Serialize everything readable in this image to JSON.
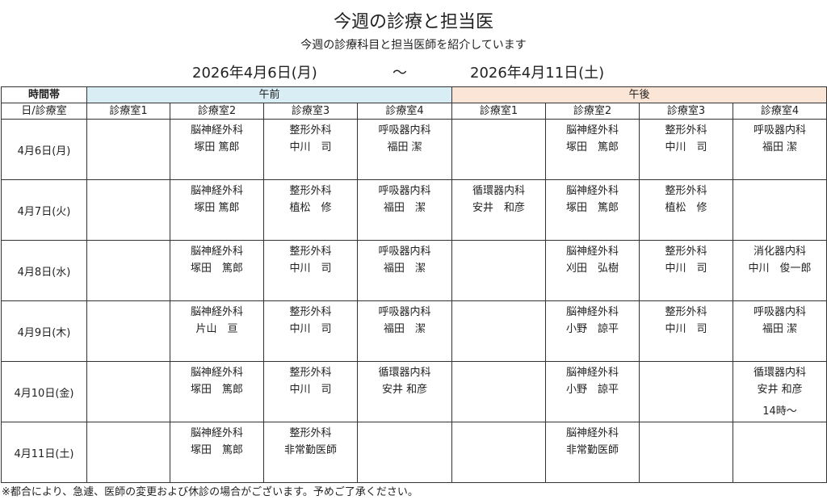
{
  "title": "今週の診療と担当医",
  "subtitle": "今週の診療科目と担当医師を紹介しています",
  "date_range": {
    "start": "2026年4月6日(月)",
    "separator": "〜",
    "end": "2026年4月11日(土)"
  },
  "table": {
    "corner_top": "時間帯",
    "corner_bottom": "日/診療室",
    "am_label": "午前",
    "pm_label": "午後",
    "rooms": [
      "診療室1",
      "診療室2",
      "診療室3",
      "診療室4",
      "診療室1",
      "診療室2",
      "診療室3",
      "診療室4"
    ],
    "days": [
      {
        "date": "4月6日(月)",
        "cells": [
          null,
          {
            "dept": "脳神経外科",
            "doctor": "塚田 篤郎"
          },
          {
            "dept": "整形外科",
            "doctor": "中川　司"
          },
          {
            "dept": "呼吸器内科",
            "doctor": "福田 潔"
          },
          null,
          {
            "dept": "脳神経外科",
            "doctor": "塚田　篤郎"
          },
          {
            "dept": "整形外科",
            "doctor": "中川　司"
          },
          {
            "dept": "呼吸器内科",
            "doctor": "福田 潔"
          }
        ]
      },
      {
        "date": "4月7日(火)",
        "cells": [
          null,
          {
            "dept": "脳神経外科",
            "doctor": "塚田 篤郎"
          },
          {
            "dept": "整形外科",
            "doctor": "植松　修"
          },
          {
            "dept": "呼吸器内科",
            "doctor": "福田　潔"
          },
          {
            "dept": "循環器内科",
            "doctor": "安井　和彦"
          },
          {
            "dept": "脳神経外科",
            "doctor": "塚田　篤郎"
          },
          {
            "dept": "整形外科",
            "doctor": "植松　修"
          },
          null
        ]
      },
      {
        "date": "4月8日(水)",
        "cells": [
          null,
          {
            "dept": "脳神経外科",
            "doctor": "塚田　篤郎"
          },
          {
            "dept": "整形外科",
            "doctor": "中川　司"
          },
          {
            "dept": "呼吸器内科",
            "doctor": "福田　潔"
          },
          null,
          {
            "dept": "脳神経外科",
            "doctor": "刈田　弘樹"
          },
          {
            "dept": "整形外科",
            "doctor": "中川　司"
          },
          {
            "dept": "消化器内科",
            "doctor": "中川　俊一郎"
          }
        ]
      },
      {
        "date": "4月9日(木)",
        "cells": [
          null,
          {
            "dept": "脳神経外科",
            "doctor": "片山　亘"
          },
          {
            "dept": "整形外科",
            "doctor": "中川　司"
          },
          {
            "dept": "呼吸器内科",
            "doctor": "福田　潔"
          },
          null,
          {
            "dept": "脳神経外科",
            "doctor": "小野　諒平"
          },
          {
            "dept": "整形外科",
            "doctor": "中川　司"
          },
          {
            "dept": "呼吸器内科",
            "doctor": "福田 潔"
          }
        ]
      },
      {
        "date": "4月10日(金)",
        "cells": [
          null,
          {
            "dept": "脳神経外科",
            "doctor": "塚田　篤郎"
          },
          {
            "dept": "整形外科",
            "doctor": "中川　司"
          },
          {
            "dept": "循環器内科",
            "doctor": "安井 和彦"
          },
          null,
          {
            "dept": "脳神経外科",
            "doctor": "小野　諒平"
          },
          null,
          {
            "dept": "循環器内科",
            "doctor": "安井 和彦",
            "note": "14時～"
          }
        ]
      },
      {
        "date": "4月11日(土)",
        "cells": [
          null,
          {
            "dept": "脳神経外科",
            "doctor": "塚田　篤郎"
          },
          {
            "dept": "整形外科",
            "doctor": "非常勤医師"
          },
          null,
          null,
          {
            "dept": "脳神経外科",
            "doctor": "非常勤医師"
          },
          null,
          null
        ]
      }
    ]
  },
  "footnote": "※都合により、急遽、医師の変更および休診の場合がございます。予めご了承ください。"
}
